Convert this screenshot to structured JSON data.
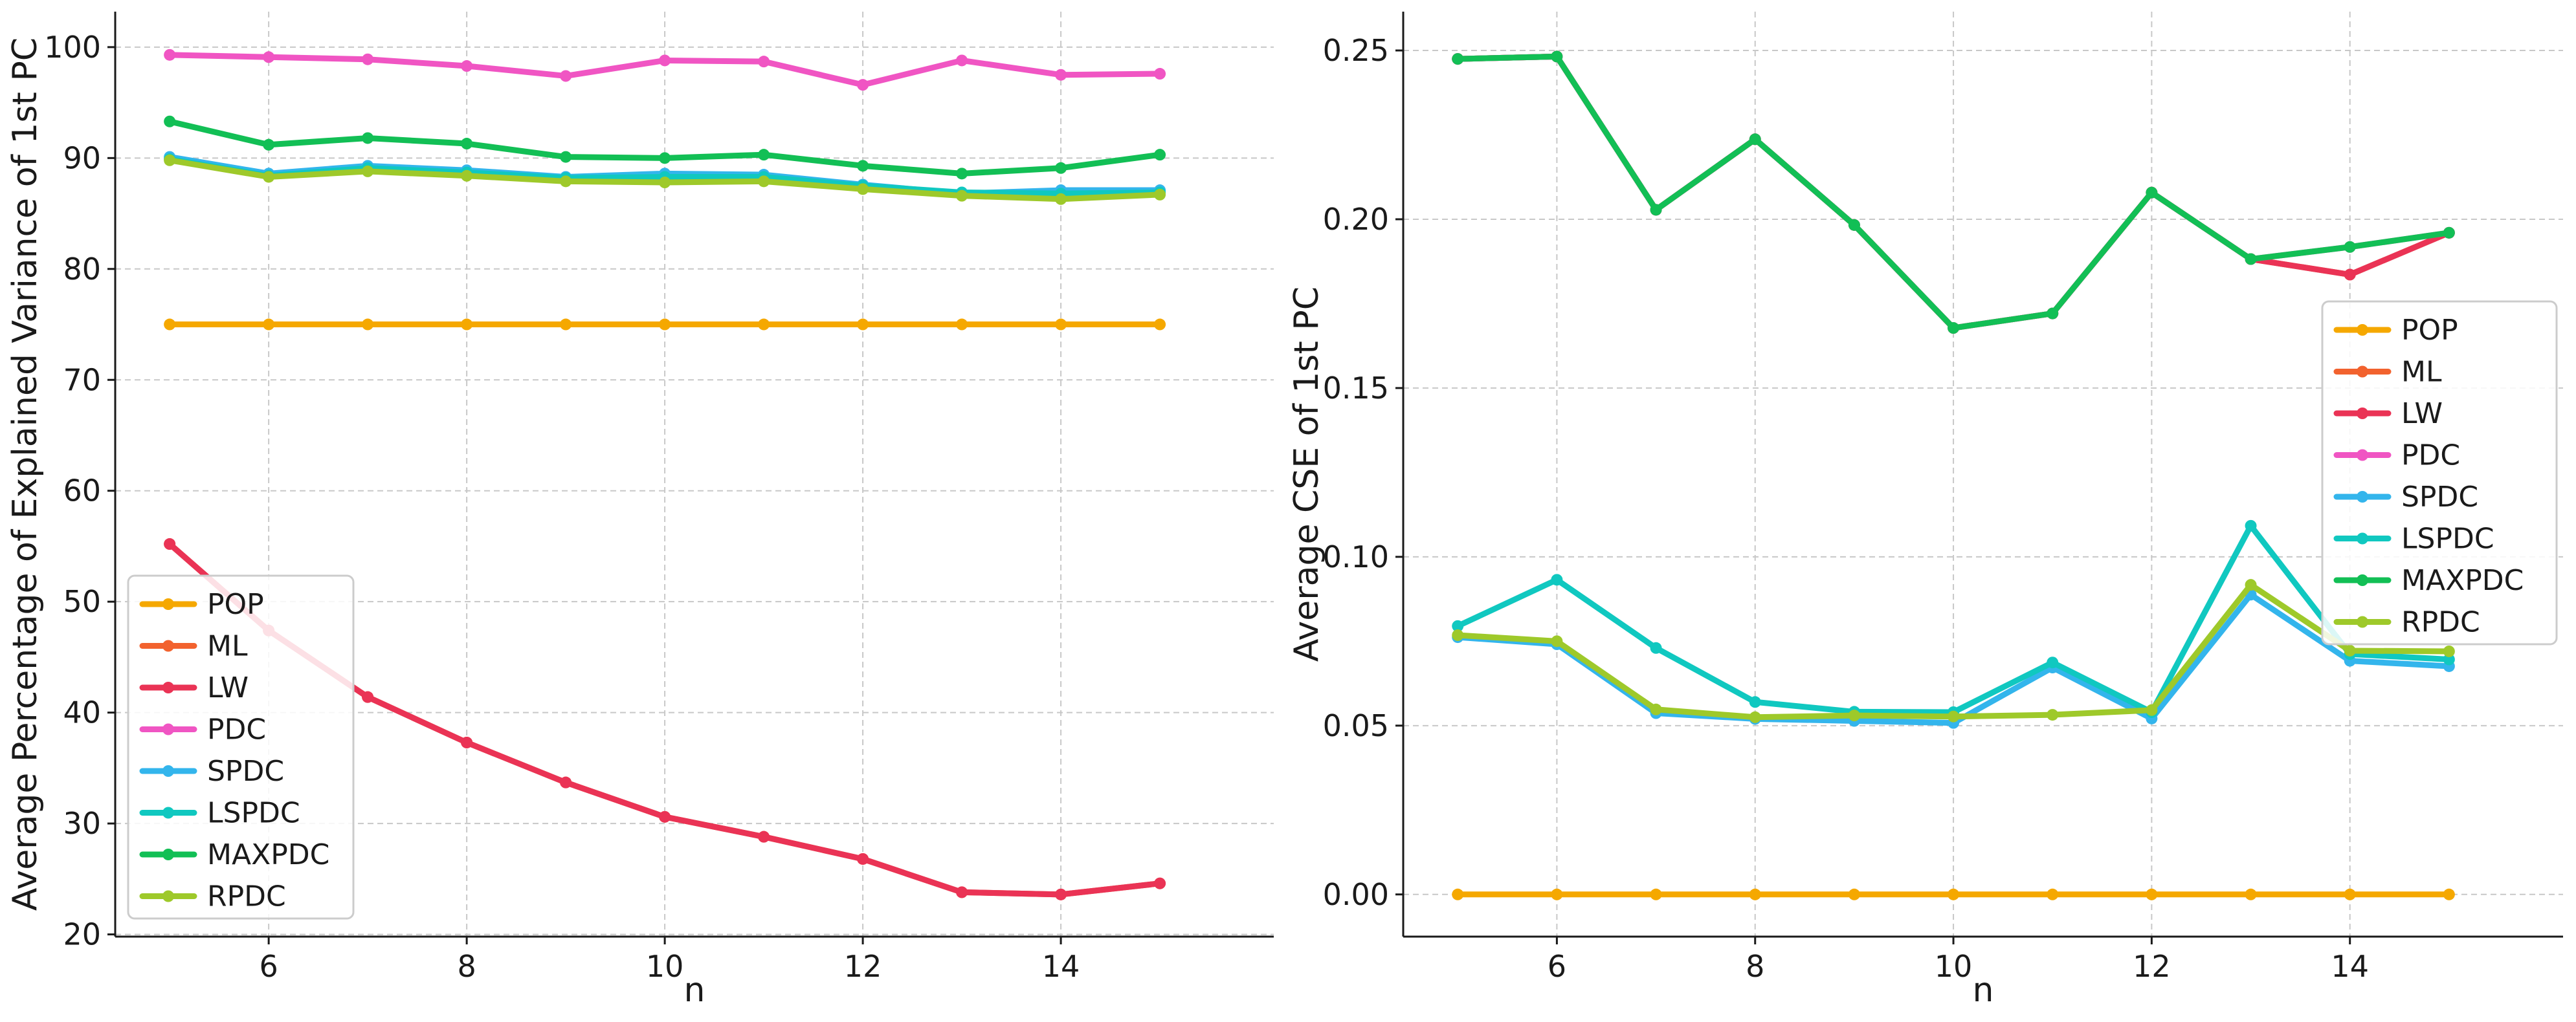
{
  "chart_data": [
    {
      "type": "line",
      "title": "",
      "xlabel": "n",
      "ylabel": "Average Percentage of Explained Variance of 1st PC",
      "xlim": [
        4.45,
        16.15
      ],
      "ylim": [
        19.8,
        103.2
      ],
      "xticks": [
        6,
        8,
        10,
        12,
        14
      ],
      "yticks": [
        20,
        30,
        40,
        50,
        60,
        70,
        80,
        90,
        100
      ],
      "grid": true,
      "legend_position": "lower-left",
      "x": [
        5,
        6,
        7,
        8,
        9,
        10,
        11,
        12,
        13,
        14,
        15
      ],
      "series": [
        {
          "name": "POP",
          "color": "#f5a800",
          "values": [
            75,
            75,
            75,
            75,
            75,
            75,
            75,
            75,
            75,
            75,
            75
          ]
        },
        {
          "name": "ML",
          "color": "#f2622e",
          "values": [
            55.2,
            47.4,
            41.4,
            37.3,
            33.7,
            30.6,
            28.8,
            26.8,
            23.8,
            23.6,
            24.6
          ]
        },
        {
          "name": "LW",
          "color": "#ea3355",
          "values": [
            55.2,
            47.4,
            41.4,
            37.3,
            33.7,
            30.6,
            28.8,
            26.8,
            23.8,
            23.6,
            24.6
          ]
        },
        {
          "name": "PDC",
          "color": "#f055c3",
          "values": [
            99.3,
            99.1,
            98.9,
            98.3,
            97.4,
            98.8,
            98.7,
            96.6,
            98.8,
            97.5,
            97.6
          ]
        },
        {
          "name": "SPDC",
          "color": "#33b5ec",
          "values": [
            90.1,
            88.6,
            89.3,
            88.9,
            88.3,
            88.6,
            88.5,
            87.6,
            86.8,
            87.1,
            87.1
          ]
        },
        {
          "name": "LSPDC",
          "color": "#10c8c0",
          "values": [
            89.9,
            88.4,
            89.1,
            88.7,
            88.2,
            88.3,
            88.3,
            87.5,
            86.9,
            86.8,
            86.9
          ]
        },
        {
          "name": "MAXPDC",
          "color": "#12bf55",
          "values": [
            93.3,
            91.2,
            91.8,
            91.3,
            90.1,
            90.0,
            90.3,
            89.3,
            88.6,
            89.1,
            90.3
          ]
        },
        {
          "name": "RPDC",
          "color": "#9ec92a",
          "values": [
            89.8,
            88.3,
            88.8,
            88.4,
            87.9,
            87.8,
            87.9,
            87.2,
            86.6,
            86.3,
            86.7
          ]
        }
      ]
    },
    {
      "type": "line",
      "title": "",
      "xlabel": "n",
      "ylabel": "Average CSE of 1st PC",
      "xlim": [
        4.45,
        16.15
      ],
      "ylim": [
        -0.0125,
        0.2615
      ],
      "xticks": [
        6,
        8,
        10,
        12,
        14
      ],
      "yticks": [
        0.0,
        0.05,
        0.1,
        0.15,
        0.2,
        0.25
      ],
      "ytick_labels": [
        "0.00",
        "0.05",
        "0.10",
        "0.15",
        "0.20",
        "0.25"
      ],
      "grid": true,
      "legend_position": "center-right",
      "x": [
        5,
        6,
        7,
        8,
        9,
        10,
        11,
        12,
        13,
        14,
        15
      ],
      "series": [
        {
          "name": "POP",
          "color": "#f5a800",
          "values": [
            0,
            0,
            0,
            0,
            0,
            0,
            0,
            0,
            0,
            0,
            0
          ]
        },
        {
          "name": "ML",
          "color": "#f2622e",
          "values": [
            0.2475,
            0.2482,
            0.2028,
            0.2237,
            0.1983,
            0.1678,
            0.1721,
            0.2079,
            0.1882,
            0.1836,
            0.196
          ]
        },
        {
          "name": "LW",
          "color": "#ea3355",
          "values": [
            0.2475,
            0.2482,
            0.2028,
            0.2237,
            0.1983,
            0.1678,
            0.1721,
            0.2079,
            0.1882,
            0.1836,
            0.196
          ]
        },
        {
          "name": "PDC",
          "color": "#f055c3",
          "values": [
            0.2475,
            0.2482,
            0.2028,
            0.2237,
            0.1983,
            0.1678,
            0.1721,
            0.2079,
            0.1882,
            0.1918,
            0.196
          ]
        },
        {
          "name": "SPDC",
          "color": "#33b5ec",
          "values": [
            0.0762,
            0.0741,
            0.0537,
            0.052,
            0.0514,
            0.0508,
            0.0672,
            0.0521,
            0.0888,
            0.0692,
            0.0676
          ]
        },
        {
          "name": "LSPDC",
          "color": "#10c8c0",
          "values": [
            0.0795,
            0.0932,
            0.073,
            0.057,
            0.0541,
            0.054,
            0.0687,
            0.054,
            0.1092,
            0.0712,
            0.0696
          ]
        },
        {
          "name": "MAXPDC",
          "color": "#12bf55",
          "values": [
            0.2475,
            0.2482,
            0.2028,
            0.2237,
            0.1983,
            0.1678,
            0.1721,
            0.2079,
            0.1882,
            0.1918,
            0.196
          ]
        },
        {
          "name": "RPDC",
          "color": "#9ec92a",
          "values": [
            0.0768,
            0.075,
            0.0548,
            0.0525,
            0.053,
            0.0527,
            0.0532,
            0.0546,
            0.0917,
            0.0722,
            0.072
          ]
        }
      ]
    }
  ]
}
